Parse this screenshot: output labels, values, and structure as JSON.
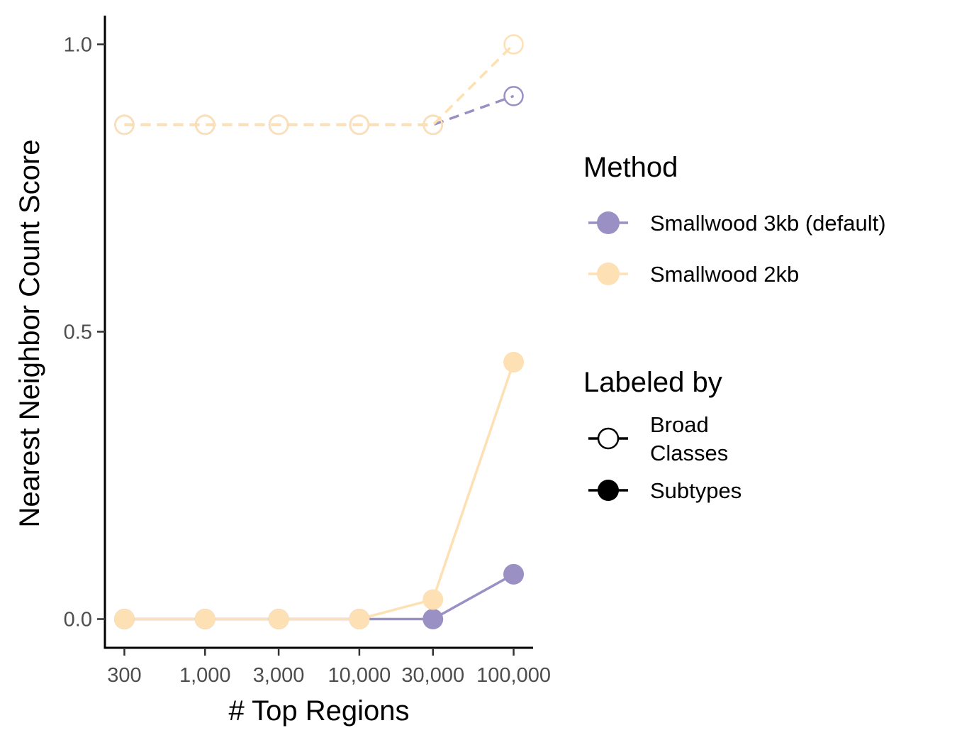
{
  "chart_data": {
    "type": "line",
    "xlabel": "# Top Regions",
    "ylabel": "Nearest Neighbor Count Score",
    "x": [
      300,
      1000,
      3000,
      10000,
      30000,
      100000
    ],
    "x_tick_labels": [
      "300",
      "1,000",
      "3,000",
      "10,000",
      "30,000",
      "100,000"
    ],
    "x_scale": "log",
    "ylim": [
      -0.05,
      1.05
    ],
    "y_ticks": [
      0.0,
      0.5,
      1.0
    ],
    "y_tick_labels": [
      "0.0",
      "0.5",
      "1.0"
    ],
    "grid": false,
    "legend_position": "right",
    "methods": [
      {
        "name": "Smallwood 3kb (default)",
        "color": "#9a90c4"
      },
      {
        "name": "Smallwood 2kb",
        "color": "#fde0b3"
      }
    ],
    "label_types": [
      {
        "name": "Broad Classes",
        "name_lines": [
          "Broad",
          "Classes"
        ],
        "marker": "open-circle",
        "line": "dashed"
      },
      {
        "name": "Subtypes",
        "name_lines": [
          "Subtypes"
        ],
        "marker": "filled-circle",
        "line": "solid"
      }
    ],
    "series": [
      {
        "method": "Smallwood 3kb (default)",
        "labeled_by": "Broad Classes",
        "values": [
          0.86,
          0.86,
          0.86,
          0.86,
          0.86,
          0.91
        ]
      },
      {
        "method": "Smallwood 3kb (default)",
        "labeled_by": "Subtypes",
        "values": [
          0.0,
          0.0,
          0.0,
          0.0,
          0.0,
          0.078
        ]
      },
      {
        "method": "Smallwood 2kb",
        "labeled_by": "Broad Classes",
        "values": [
          0.86,
          0.86,
          0.86,
          0.86,
          0.86,
          1.0
        ]
      },
      {
        "method": "Smallwood 2kb",
        "labeled_by": "Subtypes",
        "values": [
          0.0,
          0.0,
          0.0,
          0.0,
          0.034,
          0.447
        ]
      }
    ]
  },
  "legend": {
    "method_title": "Method",
    "labeled_by_title": "Labeled by"
  }
}
